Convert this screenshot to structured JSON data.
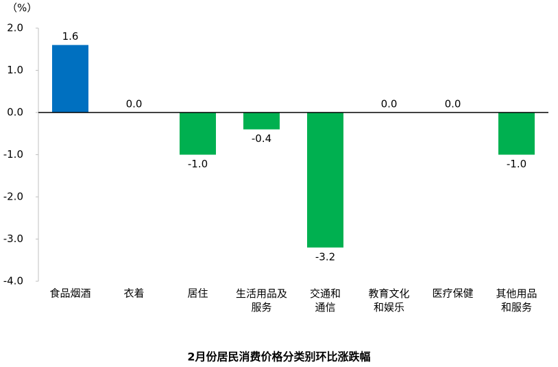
{
  "chart_data": {
    "type": "bar",
    "title": "2月份居民消费价格分类别环比涨跌幅",
    "y_unit": "（%）",
    "categories": [
      "食品烟酒",
      "衣着",
      "居住",
      "生活用品及\n服务",
      "交通和\n通信",
      "教育文化\n和娱乐",
      "医疗保健",
      "其他用品\n和服务"
    ],
    "values": [
      1.6,
      0,
      -1,
      -0.4,
      -3.2,
      0,
      0,
      -1
    ],
    "value_labels": [
      "1.6",
      "0.0",
      "-1.0",
      "-0.4",
      "-3.2",
      "0.0",
      "0.0",
      "-1.0"
    ],
    "colors": [
      "#0070c0",
      "#00b050",
      "#00b050",
      "#00b050",
      "#00b050",
      "#00b050",
      "#00b050",
      "#00b050"
    ],
    "ylim": [
      -4,
      2
    ],
    "yticks": [
      {
        "value": -4,
        "label": "-4.0"
      },
      {
        "value": -3,
        "label": "-3.0"
      },
      {
        "value": -2,
        "label": "-2.0"
      },
      {
        "value": -1,
        "label": "-1.0"
      },
      {
        "value": 0,
        "label": "0.0"
      },
      {
        "value": 1,
        "label": "1.0"
      },
      {
        "value": 2,
        "label": "2.0"
      }
    ]
  }
}
